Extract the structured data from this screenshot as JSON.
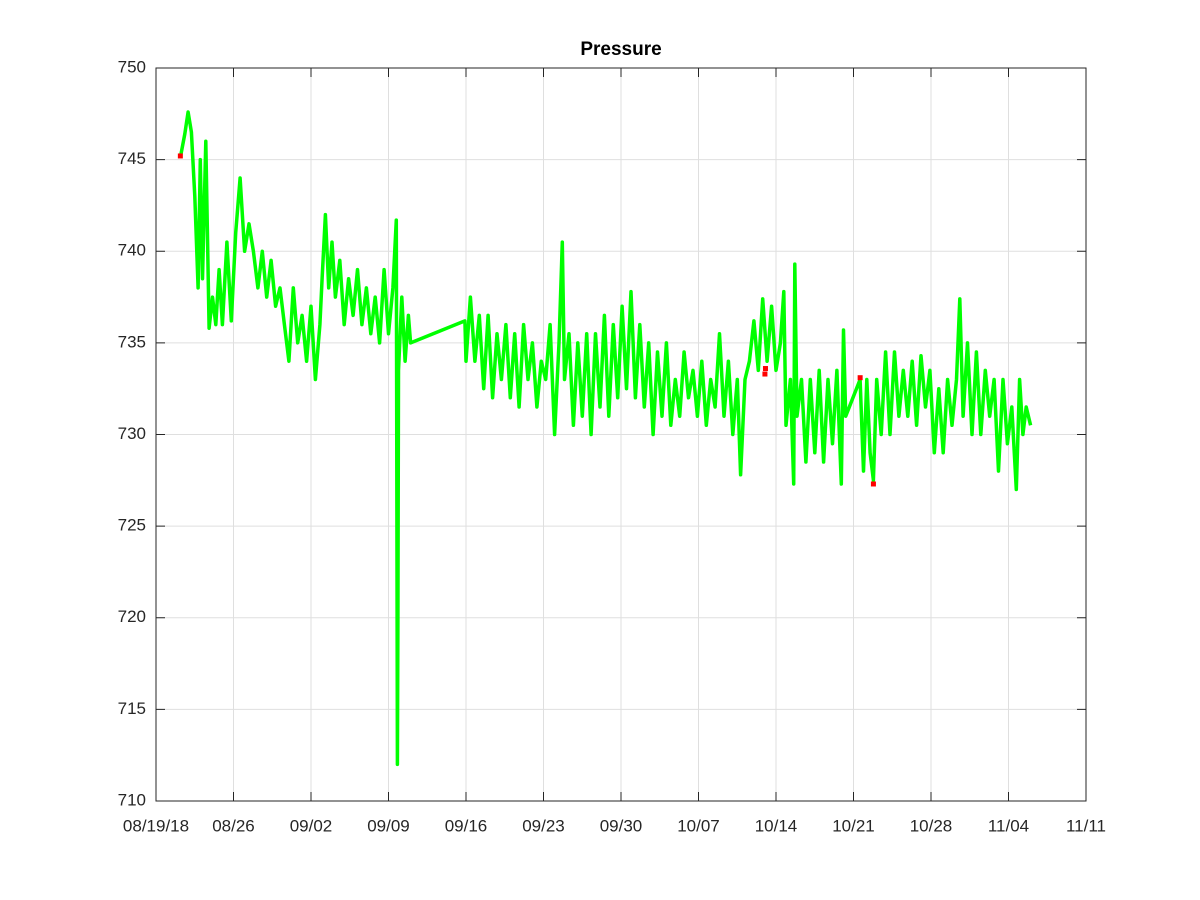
{
  "chart_data": {
    "type": "line",
    "title": "Pressure",
    "xlim": [
      0,
      84
    ],
    "xticks": [
      {
        "value": 0,
        "label": "08/19/18"
      },
      {
        "value": 7,
        "label": "08/26"
      },
      {
        "value": 14,
        "label": "09/02"
      },
      {
        "value": 21,
        "label": "09/09"
      },
      {
        "value": 28,
        "label": "09/16"
      },
      {
        "value": 35,
        "label": "09/23"
      },
      {
        "value": 42,
        "label": "09/30"
      },
      {
        "value": 49,
        "label": "10/07"
      },
      {
        "value": 56,
        "label": "10/14"
      },
      {
        "value": 63,
        "label": "10/21"
      },
      {
        "value": 70,
        "label": "10/28"
      },
      {
        "value": 77,
        "label": "11/04"
      },
      {
        "value": 84,
        "label": "11/11"
      }
    ],
    "ylim": [
      710,
      750
    ],
    "yticks": [
      710,
      715,
      720,
      725,
      730,
      735,
      740,
      745,
      750
    ],
    "grid": true,
    "series": [
      {
        "color": "#00ff00",
        "mode": "line",
        "x": [
          2.26,
          2.6,
          2.9,
          3.2,
          3.5,
          3.8,
          4.0,
          4.2,
          4.5,
          4.8,
          5.1,
          5.4,
          5.7,
          6.0,
          6.4,
          6.8,
          7.2,
          7.6,
          8.0,
          8.4,
          8.8,
          9.2,
          9.6,
          10.0,
          10.4,
          10.8,
          11.2,
          11.6,
          12.0,
          12.4,
          12.8,
          13.2,
          13.6,
          14.0,
          14.4,
          14.8,
          15.0,
          15.3,
          15.6,
          15.9,
          16.2,
          16.6,
          17.0,
          17.4,
          17.8,
          18.2,
          18.6,
          19.0,
          19.4,
          19.8,
          20.2,
          20.6,
          21.0,
          21.4,
          21.7,
          21.8,
          21.85,
          21.9,
          22.2,
          22.5,
          22.8,
          23.0,
          27.9,
          28.0,
          28.4,
          28.8,
          29.2,
          29.6,
          30.0,
          30.4,
          30.8,
          31.2,
          31.6,
          32.0,
          32.4,
          32.8,
          33.2,
          33.6,
          34.0,
          34.4,
          34.8,
          35.2,
          35.6,
          36.0,
          36.4,
          36.7,
          36.9,
          37.3,
          37.7,
          38.1,
          38.5,
          38.9,
          39.3,
          39.7,
          40.1,
          40.5,
          40.9,
          41.3,
          41.7,
          42.1,
          42.5,
          42.9,
          43.3,
          43.7,
          44.1,
          44.5,
          44.9,
          45.3,
          45.7,
          46.1,
          46.5,
          46.9,
          47.3,
          47.7,
          48.1,
          48.5,
          48.9,
          49.3,
          49.7,
          50.1,
          50.5,
          50.9,
          51.3,
          51.7,
          52.1,
          52.5,
          52.8,
          53.2,
          53.6,
          54.0,
          54.4,
          54.8,
          55.2,
          55.6,
          56.0,
          56.4,
          56.7,
          56.9,
          57.3,
          57.6,
          57.7,
          57.9,
          58.3,
          58.7,
          59.1,
          59.5,
          59.9,
          60.3,
          60.7,
          61.1,
          61.5,
          61.9,
          62.1,
          62.3,
          63.6,
          63.9,
          64.2,
          64.5,
          64.8,
          65.1,
          65.5,
          65.9,
          66.3,
          66.7,
          67.1,
          67.5,
          67.9,
          68.3,
          68.7,
          69.1,
          69.5,
          69.9,
          70.3,
          70.7,
          71.1,
          71.5,
          71.9,
          72.3,
          72.6,
          72.9,
          73.3,
          73.7,
          74.1,
          74.5,
          74.9,
          75.3,
          75.7,
          76.1,
          76.5,
          76.9,
          77.3,
          77.7,
          78.0,
          78.3,
          78.6,
          79.0
        ],
        "values": [
          745.3,
          746.4,
          747.6,
          746.5,
          743.0,
          738.0,
          745.0,
          738.5,
          746.0,
          735.8,
          737.5,
          736.0,
          739.0,
          736.0,
          740.5,
          736.2,
          741.0,
          744.0,
          740.0,
          741.5,
          740.0,
          738.0,
          740.0,
          737.5,
          739.5,
          737.0,
          738.0,
          736.0,
          734.0,
          738.0,
          735.0,
          736.5,
          734.0,
          737.0,
          733.0,
          736.0,
          738.5,
          742.0,
          738.0,
          740.5,
          737.5,
          739.5,
          736.0,
          738.5,
          736.5,
          739.0,
          736.0,
          738.0,
          735.5,
          737.5,
          735.0,
          739.0,
          735.5,
          738.0,
          741.7,
          712.0,
          719.7,
          733.5,
          737.5,
          734.0,
          736.5,
          735.0,
          736.2,
          734.0,
          737.5,
          734.0,
          736.5,
          732.5,
          736.5,
          732.0,
          735.5,
          733.0,
          736.0,
          732.0,
          735.5,
          731.5,
          736.0,
          733.0,
          735.0,
          731.5,
          734.0,
          733.0,
          736.0,
          730.0,
          735.0,
          740.5,
          733.0,
          735.5,
          730.5,
          735.0,
          731.0,
          735.5,
          730.0,
          735.5,
          731.5,
          736.5,
          731.0,
          736.0,
          732.0,
          737.0,
          732.5,
          737.8,
          732.0,
          736.0,
          731.5,
          735.0,
          730.0,
          734.5,
          731.0,
          735.0,
          730.5,
          733.0,
          731.0,
          734.5,
          732.0,
          733.5,
          731.0,
          734.0,
          730.5,
          733.0,
          731.5,
          735.5,
          731.0,
          734.0,
          730.0,
          733.0,
          727.8,
          733.0,
          734.0,
          736.2,
          733.5,
          737.4,
          734.0,
          737.0,
          733.5,
          735.0,
          737.8,
          730.5,
          733.0,
          727.3,
          739.3,
          731.0,
          733.0,
          728.5,
          733.0,
          729.0,
          733.5,
          728.5,
          733.0,
          729.5,
          733.5,
          727.3,
          735.7,
          731.0,
          733.0,
          728.0,
          733.0,
          729.0,
          727.5,
          733.0,
          730.0,
          734.5,
          730.0,
          734.5,
          731.0,
          733.5,
          731.0,
          734.0,
          730.5,
          734.3,
          731.5,
          733.5,
          729.0,
          732.5,
          729.0,
          733.0,
          730.5,
          733.0,
          737.4,
          731.0,
          735.0,
          730.0,
          734.5,
          730.0,
          733.5,
          731.0,
          733.0,
          728.0,
          733.0,
          729.5,
          731.5,
          727.0,
          733.0,
          730.0,
          731.5,
          730.5
        ]
      },
      {
        "color": "#ff0000",
        "mode": "markers",
        "x": [
          2.2,
          55.0,
          55.05,
          63.6,
          64.8
        ],
        "values": [
          745.2,
          733.3,
          733.6,
          733.1,
          727.3
        ]
      }
    ]
  }
}
